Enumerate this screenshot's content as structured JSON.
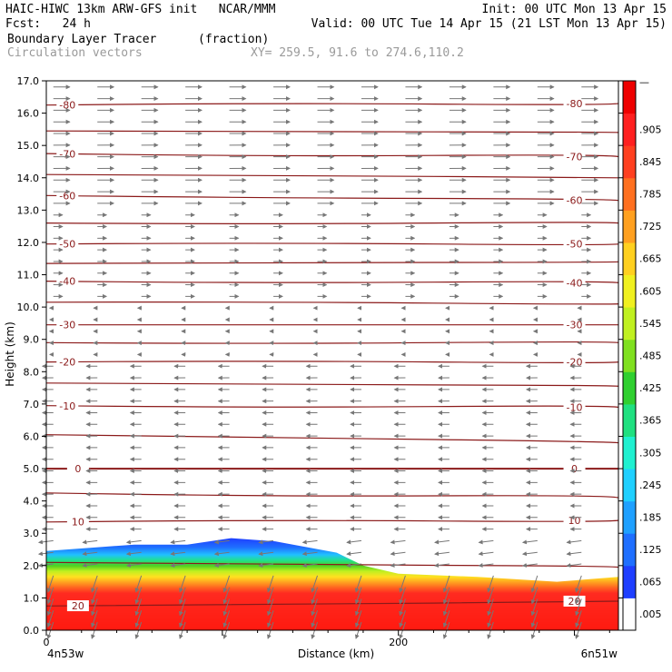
{
  "header": {
    "line1_left": "HAIC-HIWC 13km ARW-GFS init   NCAR/MMM",
    "line1_right": "Init: 00 UTC Mon 13 Apr 15",
    "line2_left": "Fcst:   24 h",
    "line2_right": "Valid: 00 UTC Tue 14 Apr 15 (21 LST Mon 13 Apr 15)",
    "field_name": "Boundary Layer Tracer",
    "field_units": "(fraction)",
    "overlay_name": "Circulation vectors",
    "xy_text": "XY= 259.5, 91.6 to 274.6,110.2"
  },
  "chart_data": {
    "type": "heatmap",
    "title": "Boundary Layer Tracer",
    "units": "(fraction)",
    "xlabel": "Distance (km)",
    "ylabel": "Height (km)",
    "xlim": [
      0,
      325
    ],
    "ylim": [
      0,
      17
    ],
    "x_ticks": [
      {
        "value": 0,
        "label": "0"
      },
      {
        "value": 200,
        "label": "200"
      }
    ],
    "x_end_labels": {
      "left": "4n53w",
      "right": "6n51w"
    },
    "y_ticks": [
      0.0,
      1.0,
      2.0,
      3.0,
      4.0,
      5.0,
      6.0,
      7.0,
      8.0,
      9.0,
      10.0,
      11.0,
      12.0,
      13.0,
      14.0,
      15.0,
      16.0,
      17.0
    ],
    "y_tick_labels": [
      "0.0",
      "1.0",
      "2.0",
      "3.0",
      "4.0",
      "5.0",
      "6.0",
      "7.0",
      "8.0",
      "9.0",
      "10.0",
      "11.0",
      "12.0",
      "13.0",
      "14.0",
      "15.0",
      "16.0",
      "17.0"
    ],
    "colorbar": {
      "labels": [
        ".005",
        ".065",
        ".125",
        ".185",
        ".245",
        ".305",
        ".365",
        ".425",
        ".485",
        ".545",
        ".605",
        ".665",
        ".725",
        ".785",
        ".845",
        ".905"
      ],
      "colors": [
        "#ffffff",
        "#1f3fff",
        "#1f6fff",
        "#1fa0ff",
        "#20d0ff",
        "#20f0d0",
        "#20e080",
        "#30d030",
        "#80e020",
        "#c0f020",
        "#f0f020",
        "#ffd020",
        "#ffa020",
        "#ff7020",
        "#ff4020",
        "#ff2020",
        "#ee0000"
      ]
    },
    "tracer_top_km": [
      {
        "x": 0,
        "z": 2.45
      },
      {
        "x": 25,
        "z": 2.55
      },
      {
        "x": 50,
        "z": 2.65
      },
      {
        "x": 80,
        "z": 2.65
      },
      {
        "x": 105,
        "z": 2.85
      },
      {
        "x": 130,
        "z": 2.75
      },
      {
        "x": 165,
        "z": 2.4
      },
      {
        "x": 180,
        "z": 2.0
      },
      {
        "x": 200,
        "z": 1.75
      },
      {
        "x": 245,
        "z": 1.65
      },
      {
        "x": 290,
        "z": 1.5
      },
      {
        "x": 325,
        "z": 1.65
      }
    ],
    "isotherm_label_values": [
      "-80",
      "-70",
      "-60",
      "-50",
      "-40",
      "-30",
      "-20",
      "-10",
      "0",
      "10",
      "20"
    ],
    "isotherm_levels_C": [
      -80,
      -75,
      -70,
      -65,
      -60,
      -55,
      -50,
      -45,
      -40,
      -35,
      -30,
      -25,
      -20,
      -15,
      -10,
      -5,
      0,
      5,
      10,
      15,
      20
    ],
    "isotherm_heights_km": [
      {
        "level": -80,
        "z_left": 16.25,
        "z_right": 16.3
      },
      {
        "level": -75,
        "z_left": 15.45,
        "z_right": 15.4
      },
      {
        "level": -70,
        "z_left": 14.75,
        "z_right": 14.65
      },
      {
        "level": -65,
        "z_left": 14.1,
        "z_right": 14.0
      },
      {
        "level": -60,
        "z_left": 13.45,
        "z_right": 13.3
      },
      {
        "level": -55,
        "z_left": 12.6,
        "z_right": 12.6
      },
      {
        "level": -50,
        "z_left": 11.95,
        "z_right": 11.95
      },
      {
        "level": -45,
        "z_left": 11.35,
        "z_right": 11.4
      },
      {
        "level": -40,
        "z_left": 10.8,
        "z_right": 10.75
      },
      {
        "level": -35,
        "z_left": 10.15,
        "z_right": 10.1
      },
      {
        "level": -30,
        "z_left": 9.45,
        "z_right": 9.45
      },
      {
        "level": -25,
        "z_left": 8.9,
        "z_right": 8.9
      },
      {
        "level": -20,
        "z_left": 8.3,
        "z_right": 8.3
      },
      {
        "level": -15,
        "z_left": 7.65,
        "z_right": 7.55
      },
      {
        "level": -10,
        "z_left": 6.95,
        "z_right": 6.9
      },
      {
        "level": -5,
        "z_left": 6.05,
        "z_right": 5.8
      },
      {
        "level": 0,
        "z_left": 5.0,
        "z_right": 5.0
      },
      {
        "level": 5,
        "z_left": 4.25,
        "z_right": 4.1
      },
      {
        "level": 10,
        "z_left": 3.35,
        "z_right": 3.4
      },
      {
        "level": 15,
        "z_left": 2.1,
        "z_right": 1.95
      },
      {
        "level": 20,
        "z_left": 0.75,
        "z_right": 0.9
      }
    ],
    "vectors": "circulation vectors (grey arrows): westerly/eastward aloft above ~11 km, weak near 9-11 km, easterly/westward below ~9 km; strong downward-left arrows in the low-level boundary layer"
  }
}
